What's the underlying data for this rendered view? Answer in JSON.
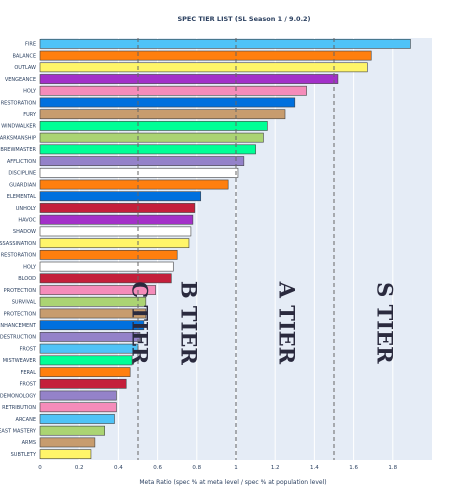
{
  "chart_data": {
    "type": "bar",
    "orientation": "horizontal",
    "title": "SPEC TIER LIST (SL Season 1 / 9.0.2)",
    "xlabel": "Meta Ratio (spec % at meta level / spec % at population level)",
    "ylabel": "",
    "xlim": [
      0,
      2.0
    ],
    "xticks": [
      0,
      0.2,
      0.4,
      0.6,
      0.8,
      1,
      1.2,
      1.4,
      1.6,
      1.8
    ],
    "grid": true,
    "threshold_lines": [
      0.5,
      1.0,
      1.5
    ],
    "tiers": [
      {
        "label": "C TIER",
        "value": 0.5
      },
      {
        "label": "B TIER",
        "value": 0.75
      },
      {
        "label": "A TIER",
        "value": 1.25
      },
      {
        "label": "S TIER",
        "value": 1.75
      }
    ],
    "bars": [
      {
        "category": "FIRE",
        "value": 1.89,
        "color": "#4fc3f7"
      },
      {
        "category": "BALANCE",
        "value": 1.69,
        "color": "#ff7f0e"
      },
      {
        "category": "OUTLAW",
        "value": 1.67,
        "color": "#fff569"
      },
      {
        "category": "VENGEANCE",
        "value": 1.52,
        "color": "#a330c9"
      },
      {
        "category": "HOLY",
        "value": 1.36,
        "color": "#f58cba"
      },
      {
        "category": "RESTORATION",
        "value": 1.3,
        "color": "#0070de"
      },
      {
        "category": "FURY",
        "value": 1.25,
        "color": "#c79c6e"
      },
      {
        "category": "WINDWALKER",
        "value": 1.16,
        "color": "#00ff96"
      },
      {
        "category": "MARKSMANSHIP",
        "value": 1.14,
        "color": "#abd473"
      },
      {
        "category": "BREWMASTER",
        "value": 1.1,
        "color": "#00ff96"
      },
      {
        "category": "AFFLICTION",
        "value": 1.04,
        "color": "#9482c9"
      },
      {
        "category": "DISCIPLINE",
        "value": 1.01,
        "color": "#ffffff"
      },
      {
        "category": "GUARDIAN",
        "value": 0.96,
        "color": "#ff7f0e"
      },
      {
        "category": "ELEMENTAL",
        "value": 0.82,
        "color": "#0070de"
      },
      {
        "category": "UNHOLY",
        "value": 0.79,
        "color": "#c41f3b"
      },
      {
        "category": "HAVOC",
        "value": 0.78,
        "color": "#a330c9"
      },
      {
        "category": "SHADOW",
        "value": 0.77,
        "color": "#ffffff"
      },
      {
        "category": "ASSASSINATION",
        "value": 0.76,
        "color": "#fff569"
      },
      {
        "category": "RESTORATION",
        "value": 0.7,
        "color": "#ff7f0e"
      },
      {
        "category": "HOLY",
        "value": 0.68,
        "color": "#ffffff"
      },
      {
        "category": "BLOOD",
        "value": 0.67,
        "color": "#c41f3b"
      },
      {
        "category": "PROTECTION",
        "value": 0.59,
        "color": "#f58cba"
      },
      {
        "category": "SURVIVAL",
        "value": 0.54,
        "color": "#abd473"
      },
      {
        "category": "PROTECTION",
        "value": 0.54,
        "color": "#c79c6e"
      },
      {
        "category": "ENHANCEMENT",
        "value": 0.53,
        "color": "#0070de"
      },
      {
        "category": "DESTRUCTION",
        "value": 0.51,
        "color": "#9482c9"
      },
      {
        "category": "FROST",
        "value": 0.5,
        "color": "#4fc3f7"
      },
      {
        "category": "MISTWEAVER",
        "value": 0.47,
        "color": "#00ff96"
      },
      {
        "category": "FERAL",
        "value": 0.46,
        "color": "#ff7f0e"
      },
      {
        "category": "FROST",
        "value": 0.44,
        "color": "#c41f3b"
      },
      {
        "category": "DEMONOLOGY",
        "value": 0.39,
        "color": "#9482c9"
      },
      {
        "category": "RETRIBUTION",
        "value": 0.39,
        "color": "#f58cba"
      },
      {
        "category": "ARCANE",
        "value": 0.38,
        "color": "#4fc3f7"
      },
      {
        "category": "BEAST MASTERY",
        "value": 0.33,
        "color": "#abd473"
      },
      {
        "category": "ARMS",
        "value": 0.28,
        "color": "#c79c6e"
      },
      {
        "category": "SUBTLETY",
        "value": 0.26,
        "color": "#fff569"
      }
    ]
  }
}
